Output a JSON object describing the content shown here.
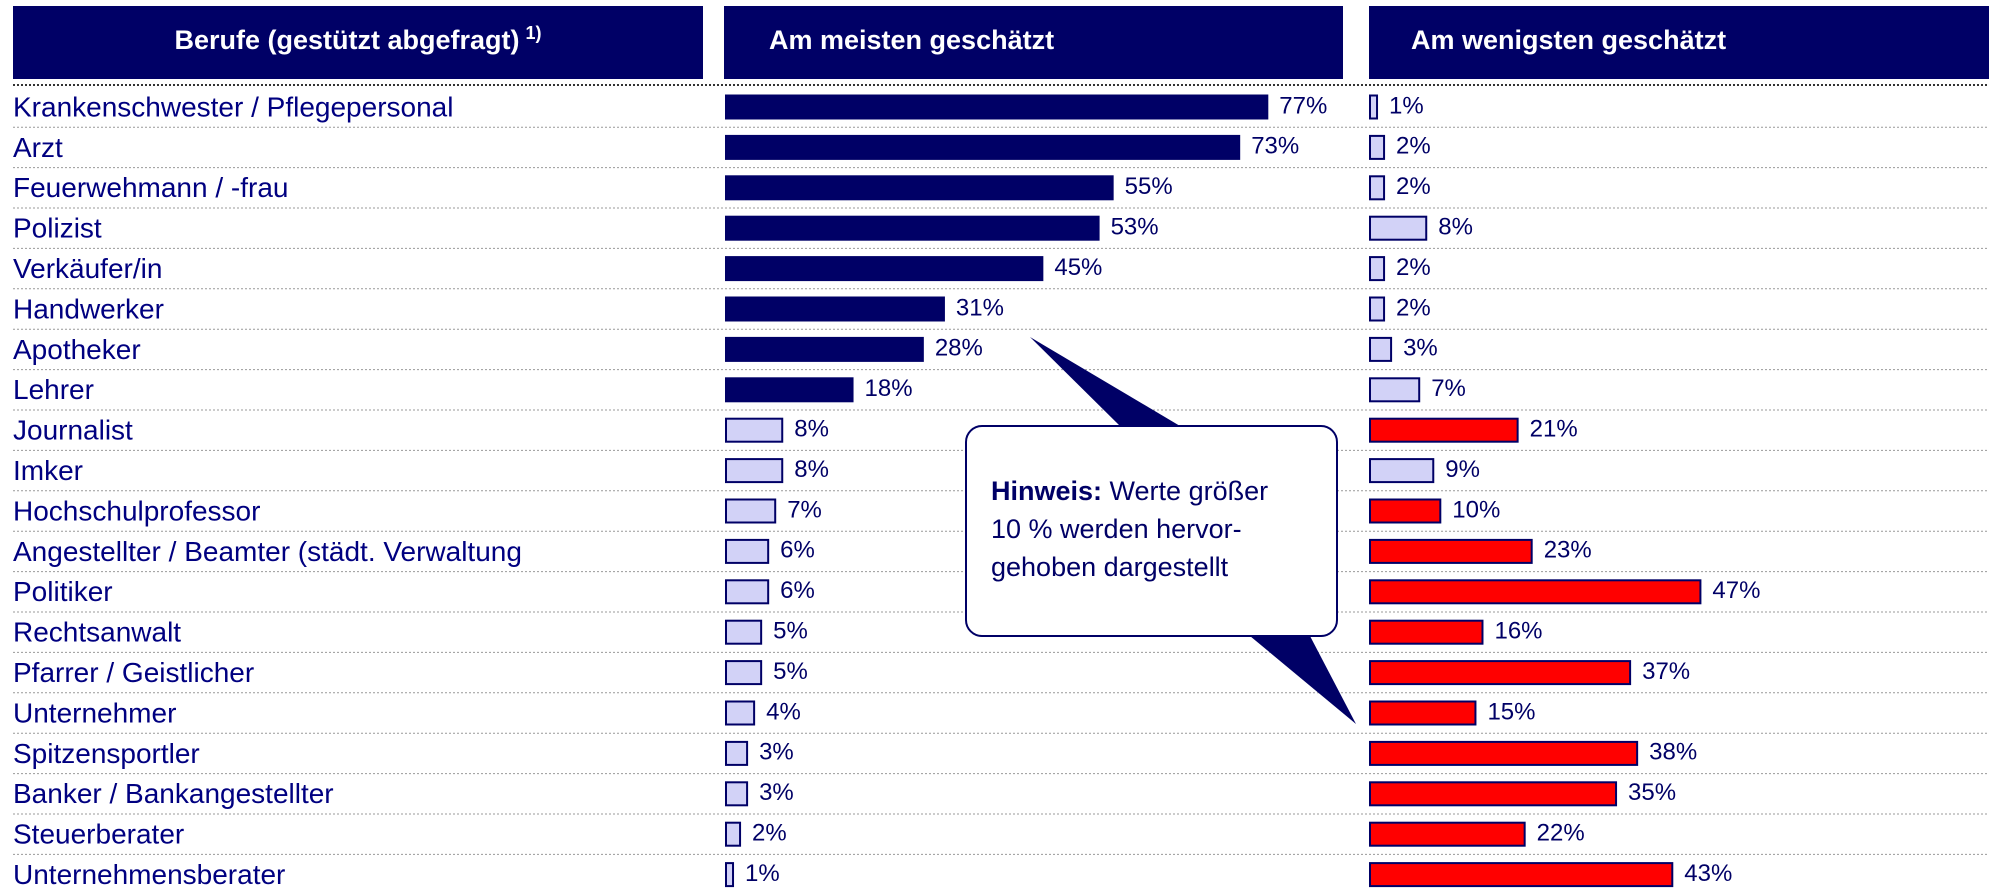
{
  "chart_data": {
    "type": "bar",
    "orientation": "horizontal",
    "category_header": "Berufe (gestützt abgefragt)",
    "category_header_note": "1)",
    "categories": [
      "Krankenschwester / Pflegepersonal",
      "Arzt",
      "Feuerwehmann / -frau",
      "Polizist",
      "Verkäufer/in",
      "Handwerker",
      "Apotheker",
      "Lehrer",
      "Journalist",
      "Imker",
      "Hochschulprofessor",
      "Angestellter / Beamter (städt. Verwaltung",
      "Politiker",
      "Rechtsanwalt",
      "Pfarrer / Geistlicher",
      "Unternehmer",
      "Spitzensportler",
      "Banker / Bankangestellter",
      "Steuerberater",
      "Unternehmensberater"
    ],
    "series": [
      {
        "name": "Am meisten geschätzt",
        "values": [
          77,
          73,
          55,
          53,
          45,
          31,
          28,
          18,
          8,
          8,
          7,
          6,
          6,
          5,
          5,
          4,
          3,
          3,
          2,
          1
        ],
        "value_labels": [
          "77%",
          "73%",
          "55%",
          "53%",
          "45%",
          "31%",
          "28%",
          "18%",
          "8%",
          "8%",
          "7%",
          "6%",
          "6%",
          "5%",
          "5%",
          "4%",
          "3%",
          "3%",
          "2%",
          "1%"
        ],
        "colors": [
          "#000066",
          "#000066",
          "#000066",
          "#000066",
          "#000066",
          "#000066",
          "#000066",
          "#000066",
          "#d2d2f7",
          "#d2d2f7",
          "#d2d2f7",
          "#d2d2f7",
          "#d2d2f7",
          "#d2d2f7",
          "#d2d2f7",
          "#d2d2f7",
          "#d2d2f7",
          "#d2d2f7",
          "#d2d2f7",
          "#d2d2f7"
        ]
      },
      {
        "name": "Am wenigsten geschätzt",
        "values": [
          1,
          2,
          2,
          8,
          2,
          2,
          3,
          7,
          21,
          9,
          10,
          23,
          47,
          16,
          37,
          15,
          38,
          35,
          22,
          43
        ],
        "value_labels": [
          "1%",
          "2%",
          "2%",
          "8%",
          "2%",
          "2%",
          "3%",
          "7%",
          "21%",
          "9%",
          "10%",
          "23%",
          "47%",
          "16%",
          "37%",
          "15%",
          "38%",
          "35%",
          "22%",
          "43%"
        ],
        "colors": [
          "#d2d2f7",
          "#d2d2f7",
          "#d2d2f7",
          "#d2d2f7",
          "#d2d2f7",
          "#d2d2f7",
          "#d2d2f7",
          "#d2d2f7",
          "#ff0000",
          "#d2d2f7",
          "#ff0000",
          "#ff0000",
          "#ff0000",
          "#ff0000",
          "#ff0000",
          "#ff0000",
          "#ff0000",
          "#ff0000",
          "#ff0000",
          "#ff0000"
        ]
      }
    ],
    "annotation": {
      "label": "Hinweis:",
      "lines": [
        "Werte größer",
        "10 % werden hervor-",
        "gehoben dargestellt"
      ]
    }
  }
}
